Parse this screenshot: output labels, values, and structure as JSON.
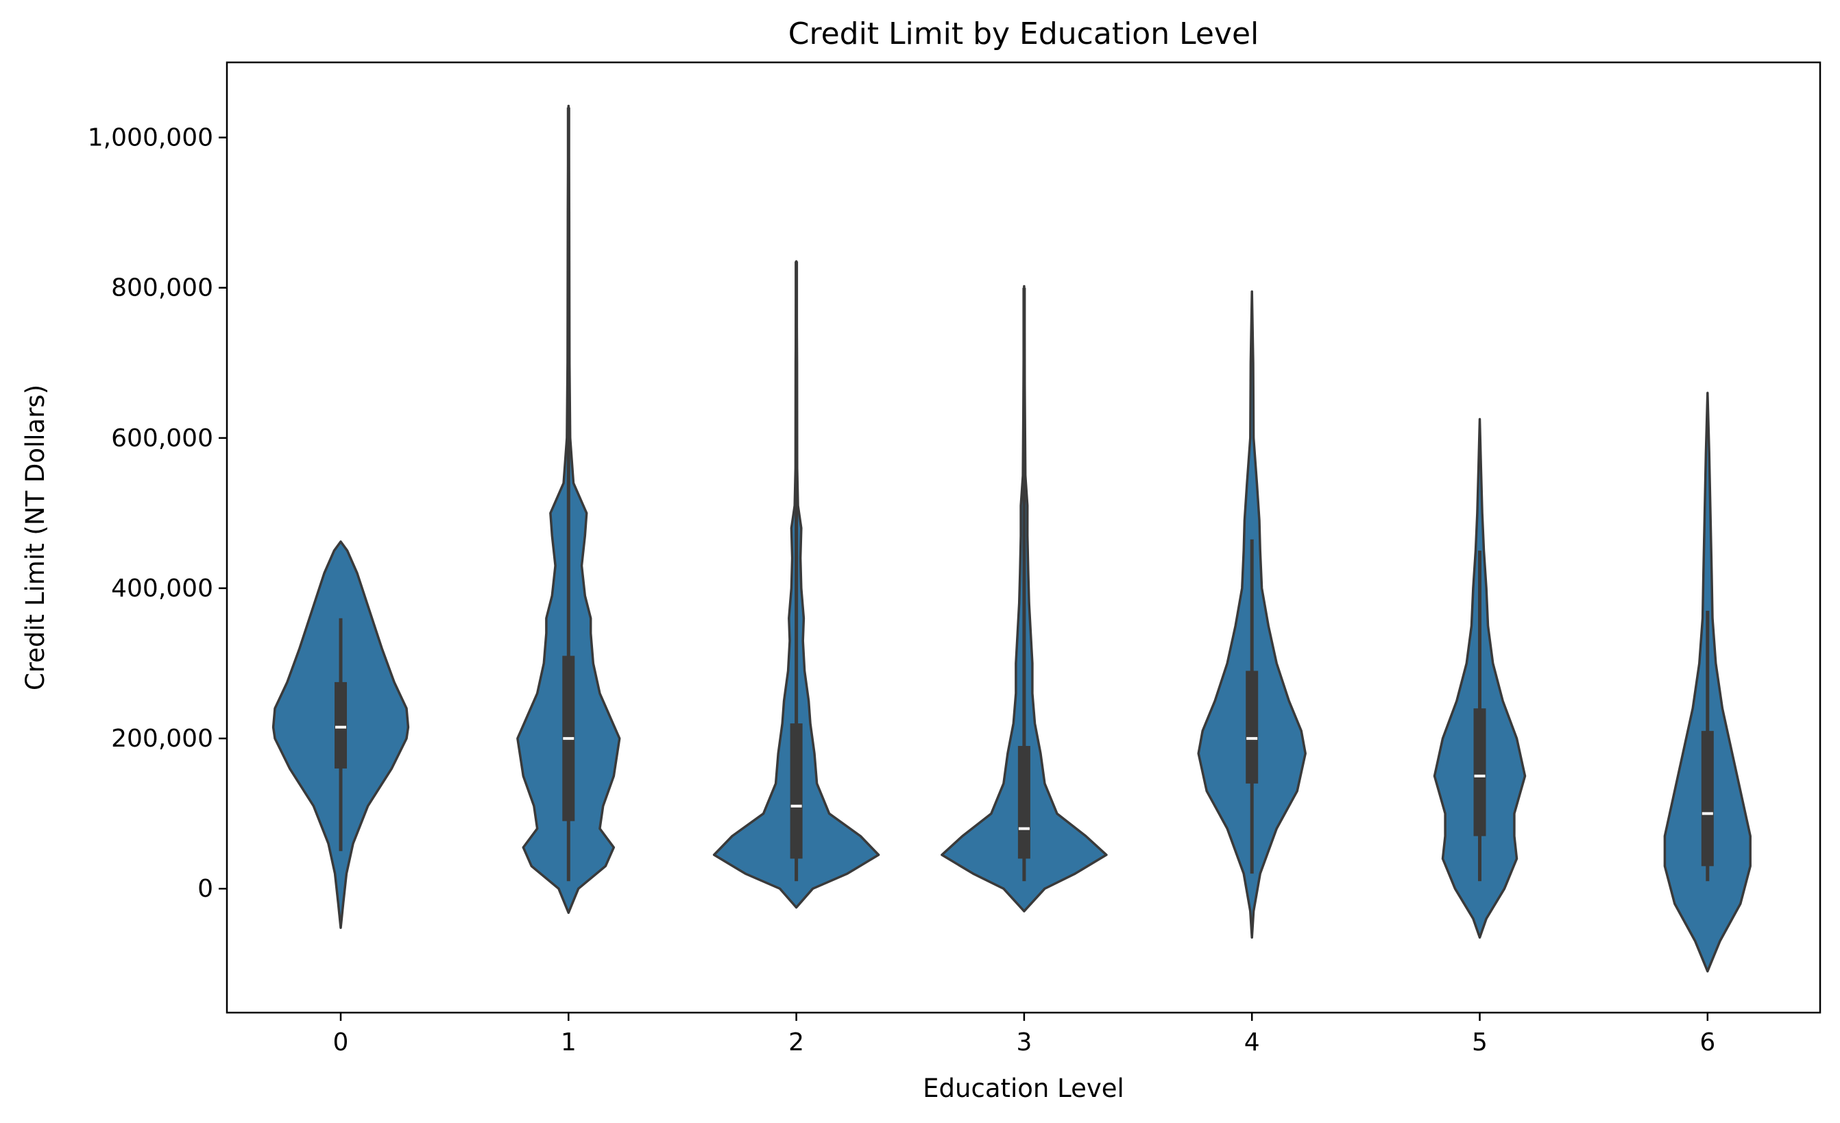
{
  "chart_data": {
    "type": "violin",
    "title": "Credit Limit by Education Level",
    "xlabel": "Education Level",
    "ylabel": "Credit Limit (NT Dollars)",
    "categories": [
      "0",
      "1",
      "2",
      "3",
      "4",
      "5",
      "6"
    ],
    "ylim": [
      -165000,
      1100000
    ],
    "yticks": [
      0,
      200000,
      400000,
      600000,
      800000,
      1000000
    ],
    "ytick_labels": [
      "0",
      "200,000",
      "400,000",
      "600,000",
      "800,000",
      "1,000,000"
    ],
    "grid": false,
    "legend": "none",
    "color": "#3274a1",
    "edge_color": "#3a3a3a",
    "violins": [
      {
        "category": "0",
        "min": 50000,
        "q1": 160000,
        "median": 215000,
        "q3": 275000,
        "max": 360000,
        "kde_min": -52000,
        "kde_max": 462000,
        "density": [
          [
            -52000,
            0
          ],
          [
            -20000,
            0.03
          ],
          [
            20000,
            0.07
          ],
          [
            60000,
            0.15
          ],
          [
            110000,
            0.33
          ],
          [
            160000,
            0.62
          ],
          [
            200000,
            0.8
          ],
          [
            215000,
            0.82
          ],
          [
            240000,
            0.8
          ],
          [
            275000,
            0.65
          ],
          [
            320000,
            0.5
          ],
          [
            370000,
            0.35
          ],
          [
            420000,
            0.2
          ],
          [
            450000,
            0.08
          ],
          [
            462000,
            0
          ]
        ]
      },
      {
        "category": "1",
        "min": 10000,
        "q1": 90000,
        "median": 200000,
        "q3": 310000,
        "max": 1040000,
        "kde_min": -32000,
        "kde_max": 1042000,
        "density": [
          [
            -32000,
            0
          ],
          [
            0,
            0.12
          ],
          [
            30000,
            0.45
          ],
          [
            55000,
            0.55
          ],
          [
            80000,
            0.38
          ],
          [
            110000,
            0.42
          ],
          [
            150000,
            0.55
          ],
          [
            200000,
            0.62
          ],
          [
            230000,
            0.5
          ],
          [
            260000,
            0.38
          ],
          [
            300000,
            0.3
          ],
          [
            340000,
            0.27
          ],
          [
            360000,
            0.27
          ],
          [
            390000,
            0.2
          ],
          [
            430000,
            0.16
          ],
          [
            470000,
            0.2
          ],
          [
            500000,
            0.22
          ],
          [
            540000,
            0.06
          ],
          [
            600000,
            0.02
          ],
          [
            700000,
            0.012
          ],
          [
            900000,
            0.008
          ],
          [
            1042000,
            0
          ]
        ]
      },
      {
        "category": "2",
        "min": 10000,
        "q1": 40000,
        "median": 110000,
        "q3": 220000,
        "max": 835000,
        "kde_min": -25000,
        "kde_max": 835000,
        "density": [
          [
            -25000,
            0
          ],
          [
            0,
            0.2
          ],
          [
            20000,
            0.62
          ],
          [
            45000,
            1.0
          ],
          [
            70000,
            0.78
          ],
          [
            100000,
            0.4
          ],
          [
            140000,
            0.25
          ],
          [
            180000,
            0.22
          ],
          [
            220000,
            0.17
          ],
          [
            250000,
            0.15
          ],
          [
            290000,
            0.1
          ],
          [
            330000,
            0.08
          ],
          [
            360000,
            0.09
          ],
          [
            400000,
            0.06
          ],
          [
            440000,
            0.05
          ],
          [
            480000,
            0.06
          ],
          [
            510000,
            0.02
          ],
          [
            560000,
            0.01
          ],
          [
            700000,
            0.008
          ],
          [
            835000,
            0
          ]
        ]
      },
      {
        "category": "3",
        "min": 10000,
        "q1": 40000,
        "median": 80000,
        "q3": 190000,
        "max": 800000,
        "kde_min": -30000,
        "kde_max": 802000,
        "density": [
          [
            -30000,
            0
          ],
          [
            0,
            0.25
          ],
          [
            20000,
            0.62
          ],
          [
            45000,
            1.0
          ],
          [
            70000,
            0.75
          ],
          [
            100000,
            0.4
          ],
          [
            140000,
            0.25
          ],
          [
            180000,
            0.2
          ],
          [
            220000,
            0.13
          ],
          [
            260000,
            0.1
          ],
          [
            300000,
            0.1
          ],
          [
            340000,
            0.08
          ],
          [
            380000,
            0.06
          ],
          [
            420000,
            0.05
          ],
          [
            470000,
            0.04
          ],
          [
            510000,
            0.04
          ],
          [
            550000,
            0.015
          ],
          [
            650000,
            0.008
          ],
          [
            802000,
            0
          ]
        ]
      },
      {
        "category": "4",
        "min": 20000,
        "q1": 140000,
        "median": 200000,
        "q3": 290000,
        "max": 465000,
        "kde_min": -65000,
        "kde_max": 795000,
        "density": [
          [
            -65000,
            0
          ],
          [
            -30000,
            0.02
          ],
          [
            20000,
            0.1
          ],
          [
            80000,
            0.3
          ],
          [
            130000,
            0.55
          ],
          [
            180000,
            0.65
          ],
          [
            210000,
            0.6
          ],
          [
            250000,
            0.45
          ],
          [
            300000,
            0.3
          ],
          [
            350000,
            0.2
          ],
          [
            400000,
            0.12
          ],
          [
            450000,
            0.1
          ],
          [
            490000,
            0.09
          ],
          [
            540000,
            0.06
          ],
          [
            600000,
            0.02
          ],
          [
            700000,
            0.015
          ],
          [
            795000,
            0
          ]
        ]
      },
      {
        "category": "5",
        "min": 10000,
        "q1": 70000,
        "median": 150000,
        "q3": 240000,
        "max": 450000,
        "kde_min": -65000,
        "kde_max": 625000,
        "density": [
          [
            -65000,
            0
          ],
          [
            -40000,
            0.08
          ],
          [
            0,
            0.3
          ],
          [
            40000,
            0.45
          ],
          [
            70000,
            0.42
          ],
          [
            100000,
            0.42
          ],
          [
            150000,
            0.55
          ],
          [
            200000,
            0.45
          ],
          [
            250000,
            0.28
          ],
          [
            300000,
            0.16
          ],
          [
            350000,
            0.1
          ],
          [
            400000,
            0.08
          ],
          [
            450000,
            0.05
          ],
          [
            500000,
            0.03
          ],
          [
            560000,
            0.015
          ],
          [
            625000,
            0
          ]
        ]
      },
      {
        "category": "6",
        "min": 10000,
        "q1": 30000,
        "median": 100000,
        "q3": 210000,
        "max": 370000,
        "kde_min": -110000,
        "kde_max": 660000,
        "density": [
          [
            -110000,
            0
          ],
          [
            -70000,
            0.15
          ],
          [
            -20000,
            0.4
          ],
          [
            30000,
            0.52
          ],
          [
            70000,
            0.52
          ],
          [
            120000,
            0.42
          ],
          [
            180000,
            0.3
          ],
          [
            240000,
            0.18
          ],
          [
            300000,
            0.1
          ],
          [
            360000,
            0.06
          ],
          [
            420000,
            0.05
          ],
          [
            500000,
            0.035
          ],
          [
            580000,
            0.02
          ],
          [
            660000,
            0
          ]
        ]
      }
    ]
  }
}
